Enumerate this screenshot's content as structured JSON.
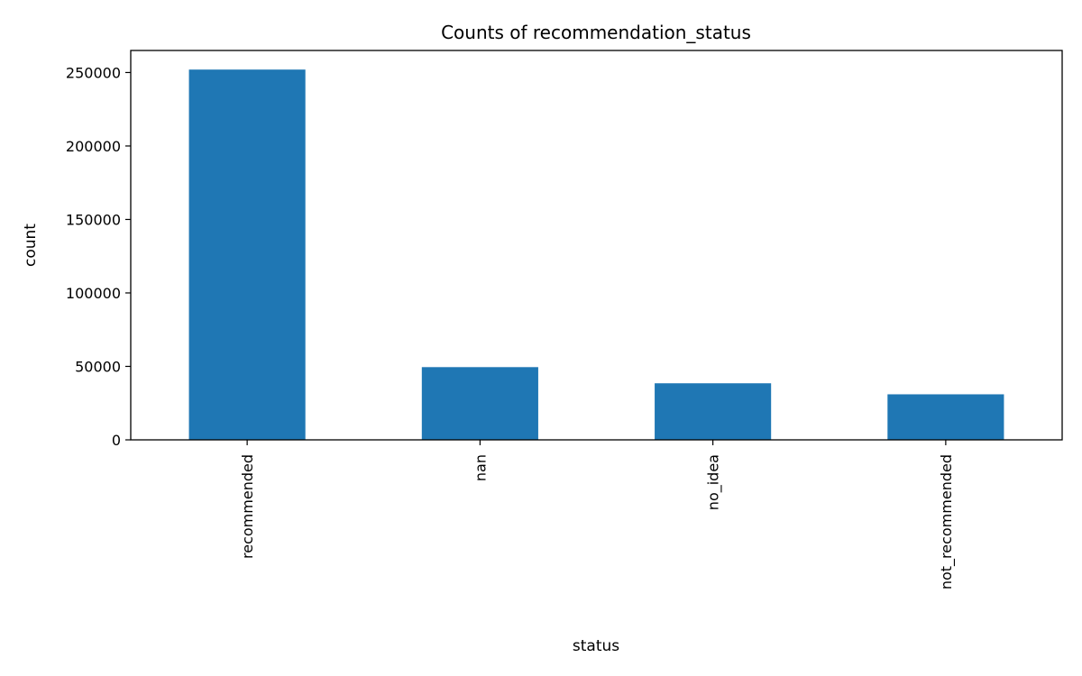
{
  "chart_data": {
    "type": "bar",
    "title": "Counts of recommendation_status",
    "xlabel": "status",
    "ylabel": "count",
    "categories": [
      "recommended",
      "nan",
      "no_idea",
      "not_recommended"
    ],
    "values": [
      252000,
      49500,
      38500,
      31000
    ],
    "ylim": [
      0,
      265000
    ],
    "yticks": [
      0,
      50000,
      100000,
      150000,
      200000,
      250000
    ],
    "ytick_labels": [
      "0",
      "50000",
      "100000",
      "150000",
      "200000",
      "250000"
    ],
    "bar_color": "#1f77b4",
    "grid": false,
    "legend": "none"
  }
}
